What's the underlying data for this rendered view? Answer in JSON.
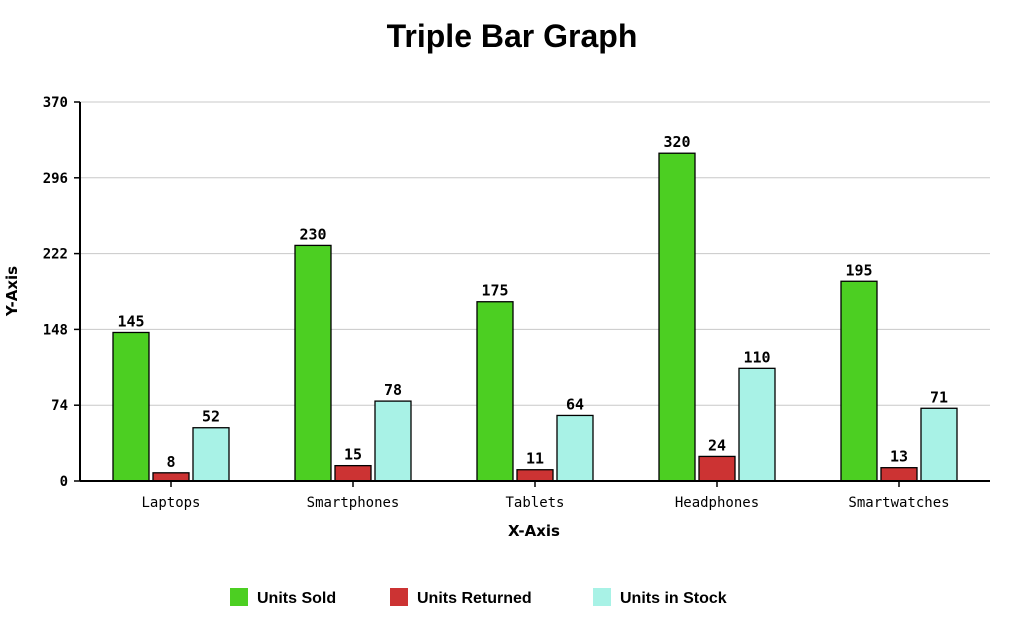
{
  "chart_data": {
    "type": "bar",
    "title": "Triple Bar Graph",
    "xlabel": "X-Axis",
    "ylabel": "Y-Axis",
    "categories": [
      "Laptops",
      "Smartphones",
      "Tablets",
      "Headphones",
      "Smartwatches"
    ],
    "series": [
      {
        "name": "Units Sold",
        "color": "#4ccf22",
        "values": [
          145,
          230,
          175,
          320,
          195
        ]
      },
      {
        "name": "Units Returned",
        "color": "#cc3333",
        "values": [
          8,
          15,
          11,
          24,
          13
        ]
      },
      {
        "name": "Units in Stock",
        "color": "#a8f2e6",
        "values": [
          52,
          78,
          64,
          110,
          71
        ]
      }
    ],
    "ylim": [
      0,
      370
    ],
    "yticks": [
      0,
      74,
      148,
      222,
      296,
      370
    ],
    "grid": true,
    "legend_position": "bottom"
  }
}
